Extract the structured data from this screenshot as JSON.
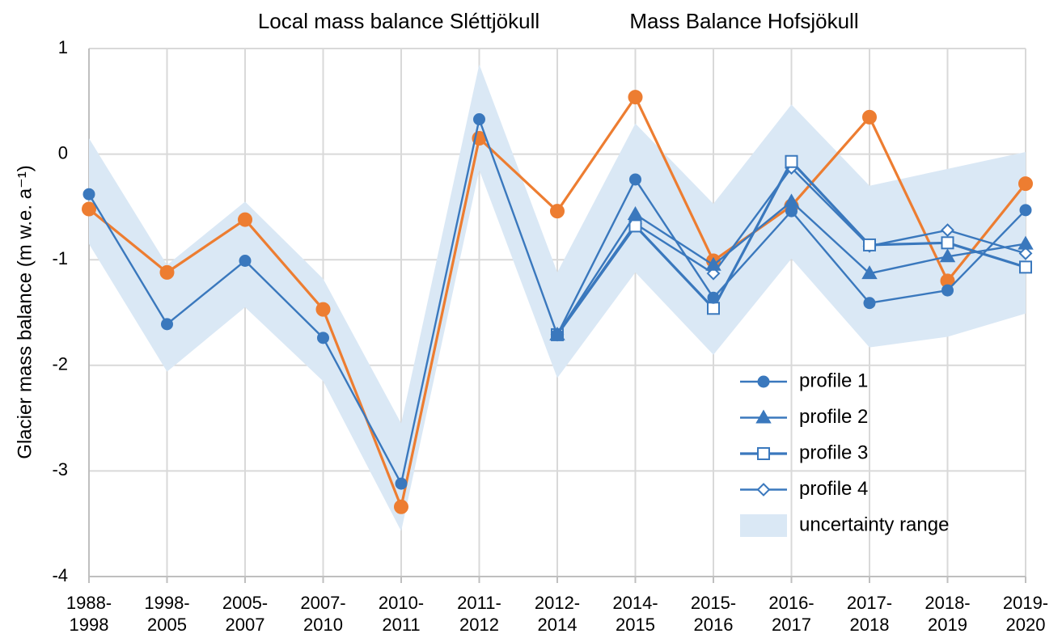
{
  "chart_data": {
    "type": "line",
    "title": "Local mass balance Sléttjökull",
    "title_color": "#3a78bd",
    "y_label": "Glacier mass balance (m w.e. a⁻¹)",
    "categories": [
      "1988-\n1998",
      "1998-\n2005",
      "2005-\n2007",
      "2007-\n2010",
      "2010-\n2011",
      "2011-\n2012",
      "2012-\n2014",
      "2014-\n2015",
      "2015-\n2016",
      "2016-\n2017",
      "2017-\n2018",
      "2018-\n2019",
      "2019-\n2020"
    ],
    "ylim": [
      -4,
      1
    ],
    "yticks": [
      -4,
      -3,
      -2,
      -1,
      0,
      1
    ],
    "grid": true,
    "legend": "lower right",
    "series": [
      {
        "name": "profile 1",
        "color": "#3a78bd",
        "marker": "circle",
        "values": [
          -0.38,
          -1.61,
          -1.01,
          -1.74,
          -3.12,
          0.33,
          -1.71,
          -0.24,
          -1.36,
          -0.54,
          -1.41,
          -1.29,
          -0.53
        ]
      },
      {
        "name": "profile 2",
        "color": "#3a78bd",
        "marker": "triangle",
        "values": [
          null,
          null,
          null,
          null,
          null,
          null,
          -1.71,
          -0.57,
          -1.05,
          -0.45,
          -1.13,
          -0.97,
          -0.85
        ]
      },
      {
        "name": "profile 3",
        "color": "#3a78bd",
        "marker": "square",
        "values": [
          null,
          null,
          null,
          null,
          null,
          null,
          -1.71,
          -0.68,
          -1.46,
          -0.07,
          -0.86,
          -0.84,
          -1.07
        ]
      },
      {
        "name": "profile 4",
        "color": "#3a78bd",
        "marker": "diamond",
        "values": [
          null,
          null,
          null,
          null,
          null,
          null,
          -1.71,
          -0.66,
          -1.13,
          -0.13,
          -0.87,
          -0.72,
          -0.94
        ]
      },
      {
        "name": "Mass Balance Hofsjökull",
        "color": "#ed7d31",
        "marker": "circle",
        "in_legend": false,
        "values": [
          -0.52,
          -1.12,
          -0.62,
          -1.47,
          -3.34,
          0.15,
          -0.54,
          0.54,
          -1.01,
          -0.49,
          0.35,
          -1.2,
          -0.28
        ]
      },
      {
        "name": "uncertainty range",
        "color": "#dae8f5",
        "type": "area",
        "upper": [
          0.15,
          -1.05,
          -0.45,
          -1.18,
          -2.55,
          0.85,
          -1.12,
          0.29,
          -0.47,
          0.47,
          -0.3,
          -0.14,
          0.02
        ],
        "lower": [
          -0.85,
          -2.06,
          -1.45,
          -2.15,
          -3.57,
          -0.15,
          -2.12,
          -1.12,
          -1.9,
          -0.99,
          -1.83,
          -1.73,
          -1.51
        ]
      }
    ]
  }
}
